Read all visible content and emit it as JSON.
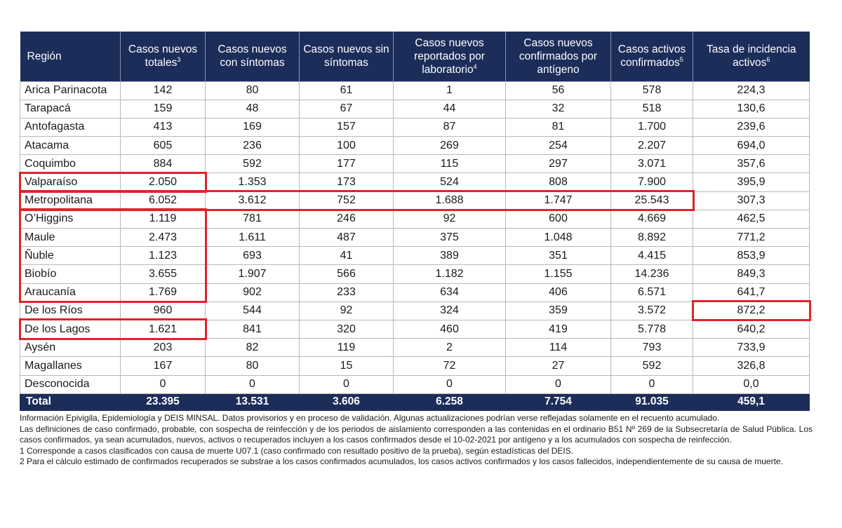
{
  "table": {
    "headers": [
      {
        "text": "Región",
        "sup": ""
      },
      {
        "text": "Casos nuevos totales",
        "sup": "3"
      },
      {
        "text": "Casos nuevos con síntomas",
        "sup": ""
      },
      {
        "text": "Casos nuevos sin síntomas",
        "sup": ""
      },
      {
        "text": "Casos nuevos reportados por laboratorio",
        "sup": "4"
      },
      {
        "text": "Casos nuevos confirmados por antígeno",
        "sup": ""
      },
      {
        "text": "Casos activos confirmados",
        "sup": "5"
      },
      {
        "text": "Tasa de incidencia activos",
        "sup": "6"
      }
    ],
    "rows": [
      [
        "Arica Parinacota",
        "142",
        "80",
        "61",
        "1",
        "56",
        "578",
        "224,3"
      ],
      [
        "Tarapacá",
        "159",
        "48",
        "67",
        "44",
        "32",
        "518",
        "130,6"
      ],
      [
        "Antofagasta",
        "413",
        "169",
        "157",
        "87",
        "81",
        "1.700",
        "239,6"
      ],
      [
        "Atacama",
        "605",
        "236",
        "100",
        "269",
        "254",
        "2.207",
        "694,0"
      ],
      [
        "Coquimbo",
        "884",
        "592",
        "177",
        "115",
        "297",
        "3.071",
        "357,6"
      ],
      [
        "Valparaíso",
        "2.050",
        "1.353",
        "173",
        "524",
        "808",
        "7.900",
        "395,9"
      ],
      [
        "Metropolitana",
        "6.052",
        "3.612",
        "752",
        "1.688",
        "1.747",
        "25.543",
        "307,3"
      ],
      [
        "O’Higgins",
        "1.119",
        "781",
        "246",
        "92",
        "600",
        "4.669",
        "462,5"
      ],
      [
        "Maule",
        "2.473",
        "1.611",
        "487",
        "375",
        "1.048",
        "8.892",
        "771,2"
      ],
      [
        "Ñuble",
        "1.123",
        "693",
        "41",
        "389",
        "351",
        "4.415",
        "853,9"
      ],
      [
        "Biobío",
        "3.655",
        "1.907",
        "566",
        "1.182",
        "1.155",
        "14.236",
        "849,3"
      ],
      [
        "Araucanía",
        "1.769",
        "902",
        "233",
        "634",
        "406",
        "6.571",
        "641,7"
      ],
      [
        "De los Ríos",
        "960",
        "544",
        "92",
        "324",
        "359",
        "3.572",
        "872,2"
      ],
      [
        "De los Lagos",
        "1.621",
        "841",
        "320",
        "460",
        "419",
        "5.778",
        "640,2"
      ],
      [
        "Aysén",
        "203",
        "82",
        "119",
        "2",
        "114",
        "793",
        "733,9"
      ],
      [
        "Magallanes",
        "167",
        "80",
        "15",
        "72",
        "27",
        "592",
        "326,8"
      ],
      [
        "Desconocida",
        "0",
        "0",
        "0",
        "0",
        "0",
        "0",
        "0,0"
      ]
    ],
    "total": [
      "Total",
      "23.395",
      "13.531",
      "3.606",
      "6.258",
      "7.754",
      "91.035",
      "459,1"
    ]
  },
  "highlight_color": "#e0232d",
  "header_color": "#1c2d5a",
  "notes": [
    "Información Epivigila, Epidemiología y DEIS MINSAL. Datos provisorios y en proceso de validación. Algunas actualizaciones podrían verse reflejadas solamente en el recuento acumulado.",
    "Las definiciones de caso confirmado, probable, con sospecha de reinfección y de los periodos de aislamiento corresponden a las contenidas en el ordinario B51 Nº 269 de la Subsecretaría de Salud Pública. Los casos confirmados, ya sean acumulados, nuevos, activos o recuperados incluyen a los casos confirmados desde el 10-02-2021 por antígeno y a los acumulados con sospecha de reinfección.",
    "1 Corresponde a casos clasificados con causa de muerte U07.1 (caso confirmado con resultado positivo de la prueba), según estadísticas del DEIS.",
    "2 Para el cálculo estimado de confirmados recuperados se substrae a los casos confirmados acumulados, los casos activos confirmados y los casos fallecidos, independientemente de su causa de muerte."
  ]
}
